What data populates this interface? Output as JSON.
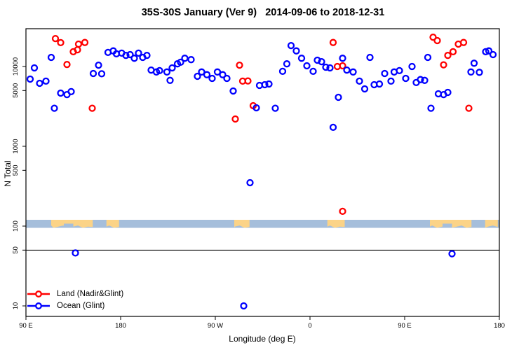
{
  "title": "35S-30S January (Ver 9)   2014-09-06 to 2018-12-31",
  "axes": {
    "x_label": "Longitude (deg E)",
    "y_label": "N Total",
    "x_ticks": [
      {
        "lon": 90,
        "label": "90 E"
      },
      {
        "lon": 180,
        "label": "180"
      },
      {
        "lon": 270,
        "label": "90 W"
      },
      {
        "lon": 360,
        "label": "0"
      },
      {
        "lon": 450,
        "label": "90 E"
      },
      {
        "lon": 540,
        "label": "180"
      }
    ],
    "y_ticks": [
      {
        "value": 10000,
        "label": "10000"
      },
      {
        "value": 5000,
        "label": "5000"
      },
      {
        "value": 1000,
        "label": "1000"
      },
      {
        "value": 500,
        "label": "500"
      },
      {
        "value": 100,
        "label": "100"
      },
      {
        "value": 50,
        "label": "50"
      },
      {
        "value": 10,
        "label": "10"
      }
    ]
  },
  "legend": {
    "items": [
      {
        "label": "Land (Nadir&Glint)",
        "color": "#ff0000"
      },
      {
        "label": "Ocean (Glint)",
        "color": "#0000ff"
      }
    ]
  },
  "colors": {
    "land_series": "#ff0000",
    "ocean_series": "#0000ff",
    "map_band_ocean": "#a5bedb",
    "map_band_land": "#fbd387",
    "reference_line": "#000000",
    "axis": "#000000"
  },
  "chart_data": {
    "type": "scatter",
    "title": "35S-30S January (Ver 9)   2014-09-06 to 2018-12-31",
    "xlabel": "Longitude (deg E)",
    "ylabel": "N Total",
    "x_axis": {
      "units": "degrees east (wrapping, 90E → 180 → 90W → 0 → 90E → 180)",
      "range_extended_deg_east": [
        90,
        540
      ],
      "tick_labels": [
        "90 E",
        "180",
        "90 W",
        "0",
        "90 E",
        "180"
      ]
    },
    "y_axis": {
      "scale": "log10",
      "range": [
        8,
        35000
      ],
      "ticks": [
        10,
        50,
        100,
        500,
        1000,
        5000,
        10000
      ]
    },
    "reference_line_n": 50,
    "map_band": {
      "at_n": 100,
      "land_segments_deg_east": [
        [
          114,
          153.5
        ],
        [
          166.5,
          178.5
        ],
        [
          288,
          302.5
        ],
        [
          376.5,
          393
        ],
        [
          474,
          513.5
        ],
        [
          526.5,
          538.5
        ]
      ],
      "ocean_notches_deg_east": [
        [
          126,
          135
        ],
        [
          486,
          495
        ]
      ]
    },
    "series": [
      {
        "name": "Land (Nadir&Glint)",
        "color": "#ff0000",
        "points": [
          [
            118,
            22400
          ],
          [
            123,
            19900
          ],
          [
            129,
            10600
          ],
          [
            135,
            15300
          ],
          [
            139,
            16200
          ],
          [
            140,
            19100
          ],
          [
            146,
            20000
          ],
          [
            153,
            3000
          ],
          [
            289,
            2200
          ],
          [
            293,
            10400
          ],
          [
            296,
            6550
          ],
          [
            301,
            6600
          ],
          [
            306,
            3230
          ],
          [
            382,
            20000
          ],
          [
            386,
            10000
          ],
          [
            391,
            10200
          ],
          [
            391,
            153
          ],
          [
            477,
            23300
          ],
          [
            481,
            21100
          ],
          [
            487,
            10500
          ],
          [
            491,
            13800
          ],
          [
            496,
            15300
          ],
          [
            501,
            19100
          ],
          [
            506,
            20000
          ],
          [
            511,
            3000
          ]
        ]
      },
      {
        "name": "Ocean (Glint)",
        "color": "#0000ff",
        "points": [
          [
            94,
            6950
          ],
          [
            98,
            9600
          ],
          [
            103,
            6160
          ],
          [
            109,
            6560
          ],
          [
            114,
            13000
          ],
          [
            117,
            3000
          ],
          [
            123,
            4640
          ],
          [
            129,
            4450
          ],
          [
            133,
            4840
          ],
          [
            137,
            46
          ],
          [
            154,
            8170
          ],
          [
            159,
            10400
          ],
          [
            162,
            8100
          ],
          [
            168,
            15000
          ],
          [
            173,
            15700
          ],
          [
            176,
            14400
          ],
          [
            181,
            14700
          ],
          [
            185,
            13800
          ],
          [
            189,
            14100
          ],
          [
            193,
            12700
          ],
          [
            197,
            14700
          ],
          [
            201,
            13000
          ],
          [
            205,
            13800
          ],
          [
            209,
            9030
          ],
          [
            214,
            8550
          ],
          [
            217,
            8880
          ],
          [
            224,
            8550
          ],
          [
            227,
            6700
          ],
          [
            229,
            9600
          ],
          [
            234,
            10800
          ],
          [
            237,
            11300
          ],
          [
            241,
            12700
          ],
          [
            247,
            12200
          ],
          [
            253,
            7530
          ],
          [
            257,
            8550
          ],
          [
            262,
            7900
          ],
          [
            267,
            7100
          ],
          [
            272,
            8550
          ],
          [
            277,
            7900
          ],
          [
            281,
            7100
          ],
          [
            287,
            4930
          ],
          [
            297,
            10
          ],
          [
            303,
            350
          ],
          [
            309,
            3040
          ],
          [
            312,
            5800
          ],
          [
            317,
            5920
          ],
          [
            321,
            6040
          ],
          [
            327,
            3000
          ],
          [
            334,
            8700
          ],
          [
            338,
            10800
          ],
          [
            342,
            18300
          ],
          [
            347,
            15700
          ],
          [
            352,
            12700
          ],
          [
            357,
            10200
          ],
          [
            363,
            8700
          ],
          [
            367,
            12000
          ],
          [
            371,
            11500
          ],
          [
            375,
            9800
          ],
          [
            379,
            9600
          ],
          [
            382,
            1730
          ],
          [
            387,
            4110
          ],
          [
            391,
            12700
          ],
          [
            395,
            9030
          ],
          [
            401,
            8550
          ],
          [
            407,
            6560
          ],
          [
            412,
            5240
          ],
          [
            417,
            13000
          ],
          [
            421,
            5920
          ],
          [
            426,
            6040
          ],
          [
            431,
            8170
          ],
          [
            437,
            6560
          ],
          [
            440,
            8550
          ],
          [
            445,
            8880
          ],
          [
            451,
            7100
          ],
          [
            457,
            10000
          ],
          [
            461,
            6300
          ],
          [
            465,
            6850
          ],
          [
            469,
            6700
          ],
          [
            472,
            13000
          ],
          [
            475,
            3000
          ],
          [
            482,
            4550
          ],
          [
            487,
            4450
          ],
          [
            491,
            4740
          ],
          [
            495,
            45
          ],
          [
            513,
            8550
          ],
          [
            516,
            11000
          ],
          [
            521,
            8460
          ],
          [
            527,
            15300
          ],
          [
            530,
            15700
          ],
          [
            534,
            14100
          ]
        ]
      }
    ]
  }
}
